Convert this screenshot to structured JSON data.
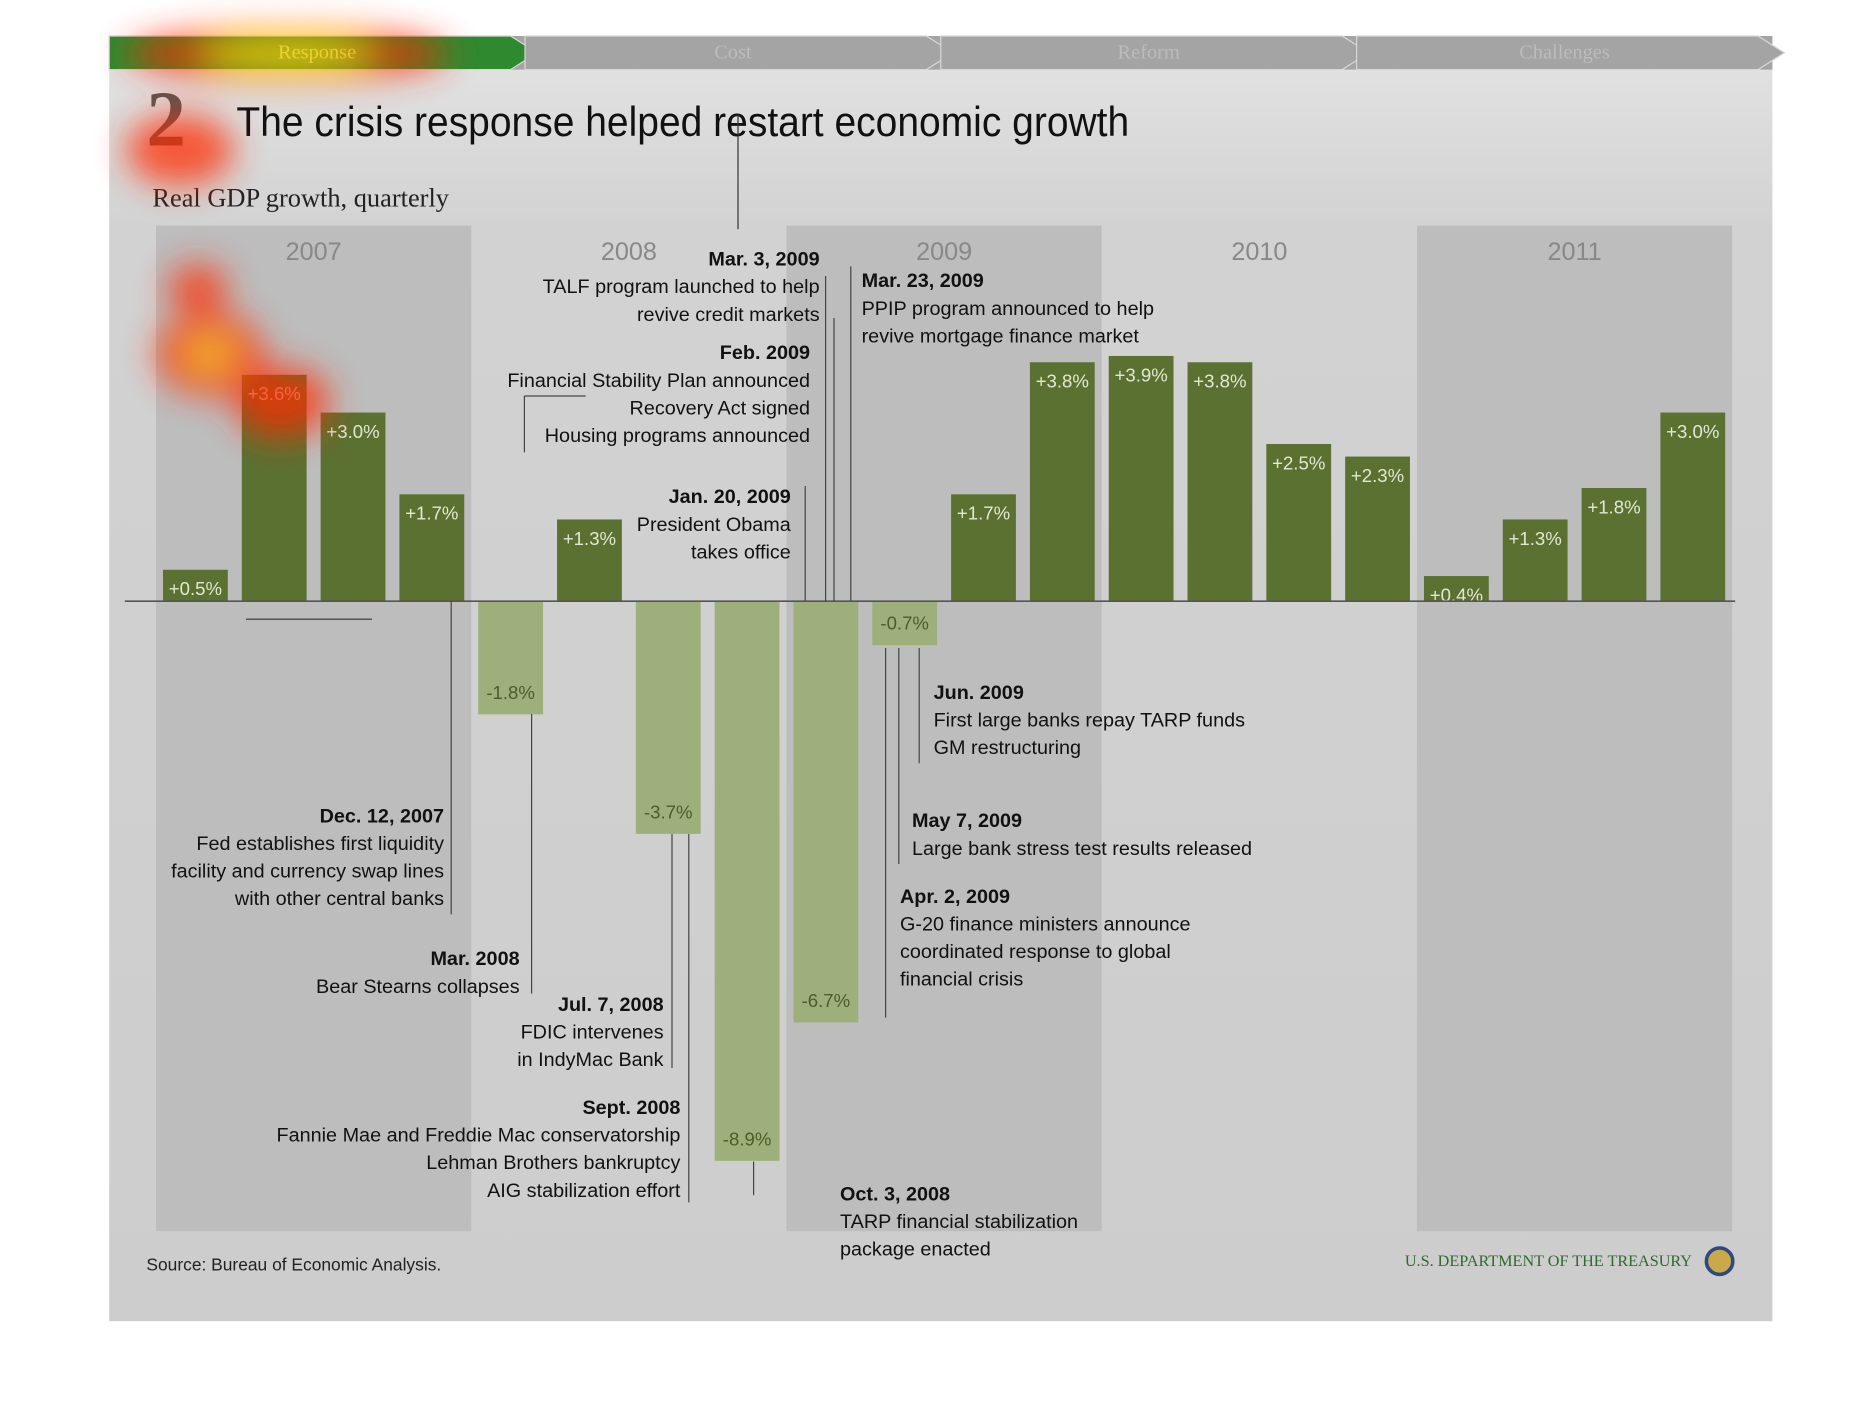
{
  "nav": [
    "Response",
    "Cost",
    "Reform",
    "Challenges"
  ],
  "nav_active": 0,
  "chart_data": {
    "type": "bar",
    "number": "2",
    "title": "The crisis response helped restart economic growth",
    "subtitle": "Real GDP growth, quarterly",
    "years": [
      "2007",
      "2008",
      "2009",
      "2010",
      "2011"
    ],
    "values": [
      0.5,
      3.6,
      3.0,
      1.7,
      -1.8,
      1.3,
      -3.7,
      -8.9,
      -6.7,
      -0.7,
      1.7,
      3.8,
      3.9,
      3.8,
      2.5,
      2.3,
      0.4,
      1.3,
      1.8,
      3.0
    ],
    "value_labels": [
      "+0.5%",
      "+3.6%",
      "+3.0%",
      "+1.7%",
      "-1.8%",
      "+1.3%",
      "-3.7%",
      "-8.9%",
      "-6.7%",
      "-0.7%",
      "+1.7%",
      "+3.8%",
      "+3.9%",
      "+3.8%",
      "+2.5%",
      "+2.3%",
      "+0.4%",
      "+1.3%",
      "+1.8%",
      "+3.0%"
    ],
    "positive_color": "#5b7131",
    "negative_color": "#9daf7b",
    "annotations": [
      {
        "date": "Mar. 3, 2009",
        "lines": [
          "TALF program launched to help",
          "revive credit markets"
        ]
      },
      {
        "date": "Mar. 23, 2009",
        "lines": [
          "PPIP program announced to help",
          "revive mortgage finance market"
        ]
      },
      {
        "date": "Feb. 2009",
        "lines": [
          "Financial Stability Plan announced",
          "Recovery Act signed",
          "Housing programs announced"
        ]
      },
      {
        "date": "Jan. 20, 2009",
        "lines": [
          "President Obama",
          "takes office"
        ]
      },
      {
        "date": "Jun. 2009",
        "lines": [
          "First large banks repay TARP funds",
          "GM restructuring"
        ]
      },
      {
        "date": "May 7, 2009",
        "lines": [
          "Large bank stress test results released"
        ]
      },
      {
        "date": "Apr. 2, 2009",
        "lines": [
          "G-20 finance ministers announce",
          "coordinated response to global",
          "financial crisis"
        ]
      },
      {
        "date": "Dec. 12, 2007",
        "lines": [
          "Fed establishes first liquidity",
          "facility and currency swap lines",
          "with other central banks"
        ]
      },
      {
        "date": "Mar. 2008",
        "lines": [
          "Bear Stearns collapses"
        ]
      },
      {
        "date": "Jul. 7, 2008",
        "lines": [
          "FDIC intervenes",
          "in IndyMac Bank"
        ]
      },
      {
        "date": "Sept. 2008",
        "lines": [
          "Fannie Mae and Freddie Mac conservatorship",
          "Lehman Brothers bankruptcy",
          "AIG stabilization effort"
        ]
      },
      {
        "date": "Oct. 3, 2008",
        "lines": [
          "TARP financial stabilization",
          "package enacted"
        ]
      }
    ],
    "source": "Source: Bureau of Economic Analysis.",
    "footer": "U.S. DEPARTMENT OF THE TREASURY"
  }
}
